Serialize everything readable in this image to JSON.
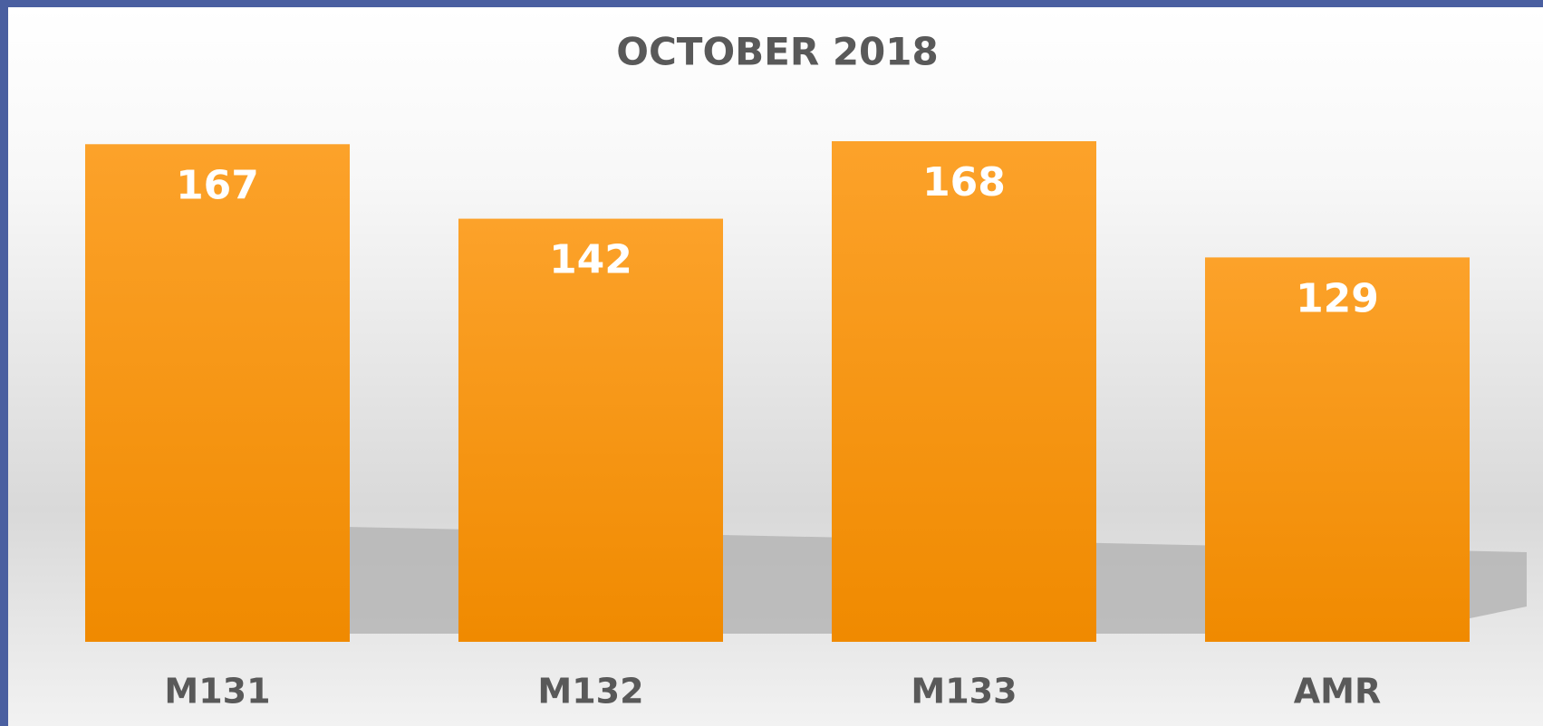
{
  "chart_data": {
    "type": "bar",
    "title": "OCTOBER 2018",
    "categories": [
      "M131",
      "M132",
      "M133",
      "AMR"
    ],
    "values": [
      167,
      142,
      168,
      129
    ],
    "color": "#f39a20"
  }
}
